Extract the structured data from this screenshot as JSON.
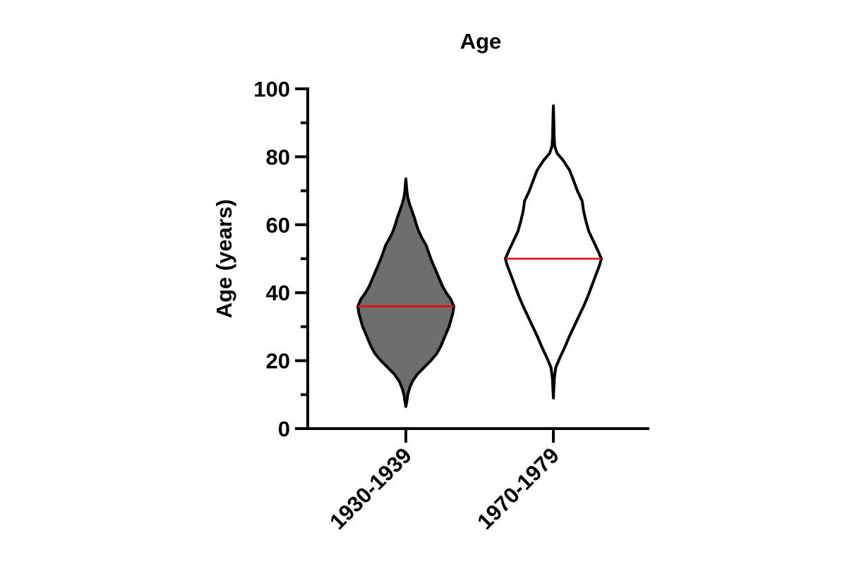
{
  "chart_data": {
    "type": "violin",
    "title": "Age",
    "ylabel": "Age (years)",
    "xlabel": "",
    "ylim": [
      0,
      100
    ],
    "y_major_ticks": [
      "0",
      "20",
      "40",
      "60",
      "80",
      "100"
    ],
    "y_minor_ticks": [
      10,
      30,
      50,
      70,
      90
    ],
    "categories": [
      "1930-1939",
      "1970-1979"
    ],
    "median_color": "#ff0000",
    "series": [
      {
        "category": "1930-1939",
        "fill": "#6e6e6e",
        "min": 6.5,
        "max": 73.5,
        "median": 36,
        "density": [
          [
            6.5,
            0.0
          ],
          [
            8.0,
            0.02
          ],
          [
            10.0,
            0.04
          ],
          [
            12.0,
            0.08
          ],
          [
            14.0,
            0.14
          ],
          [
            16.0,
            0.24
          ],
          [
            18.0,
            0.38
          ],
          [
            20.0,
            0.52
          ],
          [
            22.0,
            0.64
          ],
          [
            24.0,
            0.72
          ],
          [
            26.0,
            0.78
          ],
          [
            28.0,
            0.84
          ],
          [
            30.0,
            0.9
          ],
          [
            32.0,
            0.94
          ],
          [
            34.0,
            0.98
          ],
          [
            36.0,
            1.0
          ],
          [
            38.0,
            0.94
          ],
          [
            40.0,
            0.84
          ],
          [
            42.0,
            0.76
          ],
          [
            44.0,
            0.7
          ],
          [
            46.0,
            0.64
          ],
          [
            48.0,
            0.58
          ],
          [
            50.0,
            0.52
          ],
          [
            52.0,
            0.47
          ],
          [
            54.0,
            0.42
          ],
          [
            56.0,
            0.34
          ],
          [
            58.0,
            0.27
          ],
          [
            60.0,
            0.22
          ],
          [
            62.0,
            0.18
          ],
          [
            64.0,
            0.13
          ],
          [
            66.0,
            0.08
          ],
          [
            68.0,
            0.04
          ],
          [
            70.0,
            0.02
          ],
          [
            73.5,
            0.0
          ]
        ]
      },
      {
        "category": "1970-1979",
        "fill": "#ffffff",
        "min": 9,
        "max": 95,
        "median": 50,
        "density": [
          [
            9.0,
            0.0
          ],
          [
            12.0,
            0.01
          ],
          [
            15.0,
            0.02
          ],
          [
            18.0,
            0.05
          ],
          [
            21.0,
            0.14
          ],
          [
            24.0,
            0.24
          ],
          [
            27.0,
            0.33
          ],
          [
            30.0,
            0.43
          ],
          [
            33.0,
            0.53
          ],
          [
            36.0,
            0.63
          ],
          [
            39.0,
            0.72
          ],
          [
            42.0,
            0.8
          ],
          [
            45.0,
            0.88
          ],
          [
            48.0,
            0.96
          ],
          [
            50.0,
            1.0
          ],
          [
            52.0,
            0.94
          ],
          [
            55.0,
            0.84
          ],
          [
            58.0,
            0.74
          ],
          [
            61.0,
            0.68
          ],
          [
            64.0,
            0.63
          ],
          [
            67.0,
            0.6
          ],
          [
            70.0,
            0.5
          ],
          [
            73.0,
            0.42
          ],
          [
            76.0,
            0.34
          ],
          [
            79.0,
            0.2
          ],
          [
            81.0,
            0.08
          ],
          [
            83.0,
            0.03
          ],
          [
            86.0,
            0.015
          ],
          [
            90.0,
            0.01
          ],
          [
            95.0,
            0.0
          ]
        ]
      }
    ]
  }
}
